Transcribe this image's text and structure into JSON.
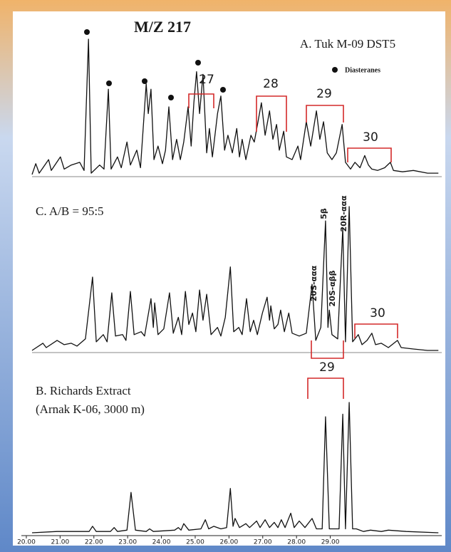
{
  "chart_data": [
    {
      "type": "line",
      "title": "M/Z 217",
      "subtitle": "A. Tuk M-09 DST5",
      "marker_label": "Diasteranes",
      "annotations": [
        "27",
        "28",
        "29",
        "30"
      ],
      "color": "#111111",
      "xlim": [
        19.6,
        32.3
      ],
      "ylim": [
        0,
        100
      ],
      "x": [
        20.17,
        20.28,
        20.38,
        20.66,
        20.74,
        21.01,
        21.12,
        21.33,
        21.58,
        21.71,
        21.84,
        21.92,
        22.17,
        22.3,
        22.43,
        22.51,
        22.7,
        22.81,
        22.98,
        23.08,
        23.27,
        23.38,
        23.55,
        23.61,
        23.69,
        23.78,
        23.9,
        24.03,
        24.12,
        24.22,
        24.33,
        24.45,
        24.56,
        24.66,
        24.79,
        24.88,
        24.96,
        25.04,
        25.13,
        25.23,
        25.34,
        25.42,
        25.51,
        25.66,
        25.76,
        25.87,
        25.97,
        26.1,
        26.23,
        26.31,
        26.39,
        26.5,
        26.65,
        26.75,
        26.86,
        26.96,
        27.07,
        27.2,
        27.3,
        27.41,
        27.49,
        27.62,
        27.7,
        27.87,
        28.04,
        28.12,
        28.29,
        28.42,
        28.59,
        28.69,
        28.8,
        28.91,
        29.05,
        29.18,
        29.35,
        29.45,
        29.6,
        29.73,
        29.88,
        30.02,
        30.13,
        30.23,
        30.4,
        30.61,
        30.78,
        30.87,
        31.14,
        31.46,
        31.88,
        32.2
      ],
      "values": [
        0,
        8,
        1,
        11,
        3,
        13,
        4,
        7,
        9,
        3,
        100,
        1,
        7,
        4,
        63,
        4,
        13,
        5,
        24,
        7,
        18,
        5,
        67,
        45,
        63,
        11,
        21,
        8,
        18,
        50,
        11,
        26,
        11,
        24,
        50,
        21,
        53,
        76,
        45,
        74,
        16,
        34,
        13,
        45,
        58,
        18,
        29,
        16,
        34,
        13,
        26,
        11,
        29,
        24,
        39,
        53,
        29,
        47,
        26,
        37,
        18,
        32,
        13,
        11,
        21,
        11,
        39,
        21,
        47,
        26,
        39,
        16,
        11,
        16,
        37,
        9,
        4,
        9,
        5,
        14,
        7,
        4,
        3,
        5,
        9,
        3,
        2,
        3,
        1,
        1
      ]
    },
    {
      "type": "line",
      "title": "C. A/B = 95:5",
      "annotations": [
        "20S-ααα",
        "5β",
        "20S-αββ",
        "20R-ααα",
        "30"
      ],
      "color": "#111111",
      "xlim": [
        19.6,
        32.3
      ],
      "ylim": [
        0,
        100
      ],
      "x": [
        20.17,
        20.49,
        20.59,
        20.91,
        21.12,
        21.33,
        21.5,
        21.75,
        21.96,
        22.07,
        22.28,
        22.39,
        22.53,
        22.64,
        22.85,
        22.95,
        23.08,
        23.19,
        23.4,
        23.5,
        23.69,
        23.76,
        23.8,
        23.9,
        24.07,
        24.24,
        24.35,
        24.5,
        24.6,
        24.71,
        24.81,
        24.92,
        25.02,
        25.13,
        25.23,
        25.34,
        25.47,
        25.66,
        25.76,
        25.89,
        26.04,
        26.14,
        26.29,
        26.39,
        26.52,
        26.63,
        26.73,
        26.84,
        26.99,
        27.13,
        27.2,
        27.24,
        27.34,
        27.45,
        27.53,
        27.64,
        27.77,
        27.87,
        28.08,
        28.29,
        28.46,
        28.57,
        28.72,
        28.86,
        28.93,
        28.97,
        29.05,
        29.22,
        29.37,
        29.45,
        29.56,
        29.66,
        29.83,
        29.94,
        30.09,
        30.23,
        30.34,
        30.51,
        30.72,
        30.99,
        31.1,
        31.46,
        31.88,
        32.2
      ],
      "values": [
        0,
        5,
        2,
        7,
        4,
        5,
        3,
        8,
        51,
        6,
        11,
        6,
        40,
        10,
        11,
        7,
        41,
        11,
        13,
        10,
        36,
        16,
        33,
        11,
        15,
        40,
        12,
        23,
        11,
        41,
        18,
        26,
        13,
        42,
        21,
        39,
        11,
        16,
        10,
        23,
        58,
        13,
        16,
        11,
        36,
        13,
        21,
        11,
        26,
        37,
        21,
        31,
        15,
        18,
        28,
        13,
        26,
        12,
        10,
        12,
        46,
        7,
        16,
        90,
        16,
        28,
        11,
        8,
        85,
        6,
        100,
        6,
        11,
        4,
        7,
        12,
        4,
        5,
        2,
        7,
        2,
        1,
        0,
        0
      ]
    },
    {
      "type": "line",
      "title": "B. Richards Extract",
      "subtitle": "(Arnak K-06, 3000 m)",
      "annotations": [
        "29"
      ],
      "color": "#111111",
      "xlim": [
        19.6,
        32.3
      ],
      "ylim": [
        0,
        100
      ],
      "xticks": [
        {
          "value": 20,
          "label": "20.00"
        },
        {
          "value": 21,
          "label": "21.00"
        },
        {
          "value": 22,
          "label": "22.00"
        },
        {
          "value": 23,
          "label": "23.00"
        },
        {
          "value": 24,
          "label": "24.00"
        },
        {
          "value": 25,
          "label": "25.00"
        },
        {
          "value": 26,
          "label": "26.00"
        },
        {
          "value": 27,
          "label": "27.00"
        },
        {
          "value": 28,
          "label": "28.00"
        },
        {
          "value": 29,
          "label": "29.00"
        }
      ],
      "x": [
        20.17,
        20.91,
        21.33,
        21.86,
        21.96,
        22.07,
        22.49,
        22.6,
        22.7,
        22.98,
        23.1,
        23.23,
        23.55,
        23.65,
        23.76,
        24.39,
        24.5,
        24.58,
        24.66,
        24.81,
        25.17,
        25.3,
        25.4,
        25.55,
        25.76,
        25.93,
        26.04,
        26.12,
        26.18,
        26.31,
        26.5,
        26.61,
        26.82,
        26.92,
        27.07,
        27.2,
        27.34,
        27.45,
        27.55,
        27.66,
        27.83,
        27.93,
        28.08,
        28.25,
        28.46,
        28.59,
        28.76,
        28.86,
        28.97,
        29.14,
        29.26,
        29.37,
        29.45,
        29.56,
        29.66,
        29.77,
        29.98,
        30.19,
        30.51,
        30.72,
        31.25,
        32.2
      ],
      "values": [
        0,
        1,
        1,
        1,
        5,
        1,
        1,
        4,
        1,
        2,
        31,
        2,
        1,
        3,
        1,
        2,
        4,
        2,
        7,
        2,
        3,
        10,
        3,
        5,
        3,
        4,
        34,
        5,
        11,
        4,
        7,
        4,
        9,
        4,
        10,
        4,
        8,
        4,
        10,
        4,
        15,
        4,
        9,
        4,
        11,
        3,
        3,
        89,
        3,
        3,
        3,
        91,
        3,
        100,
        3,
        3,
        1,
        2,
        1,
        2,
        1,
        0
      ]
    }
  ]
}
